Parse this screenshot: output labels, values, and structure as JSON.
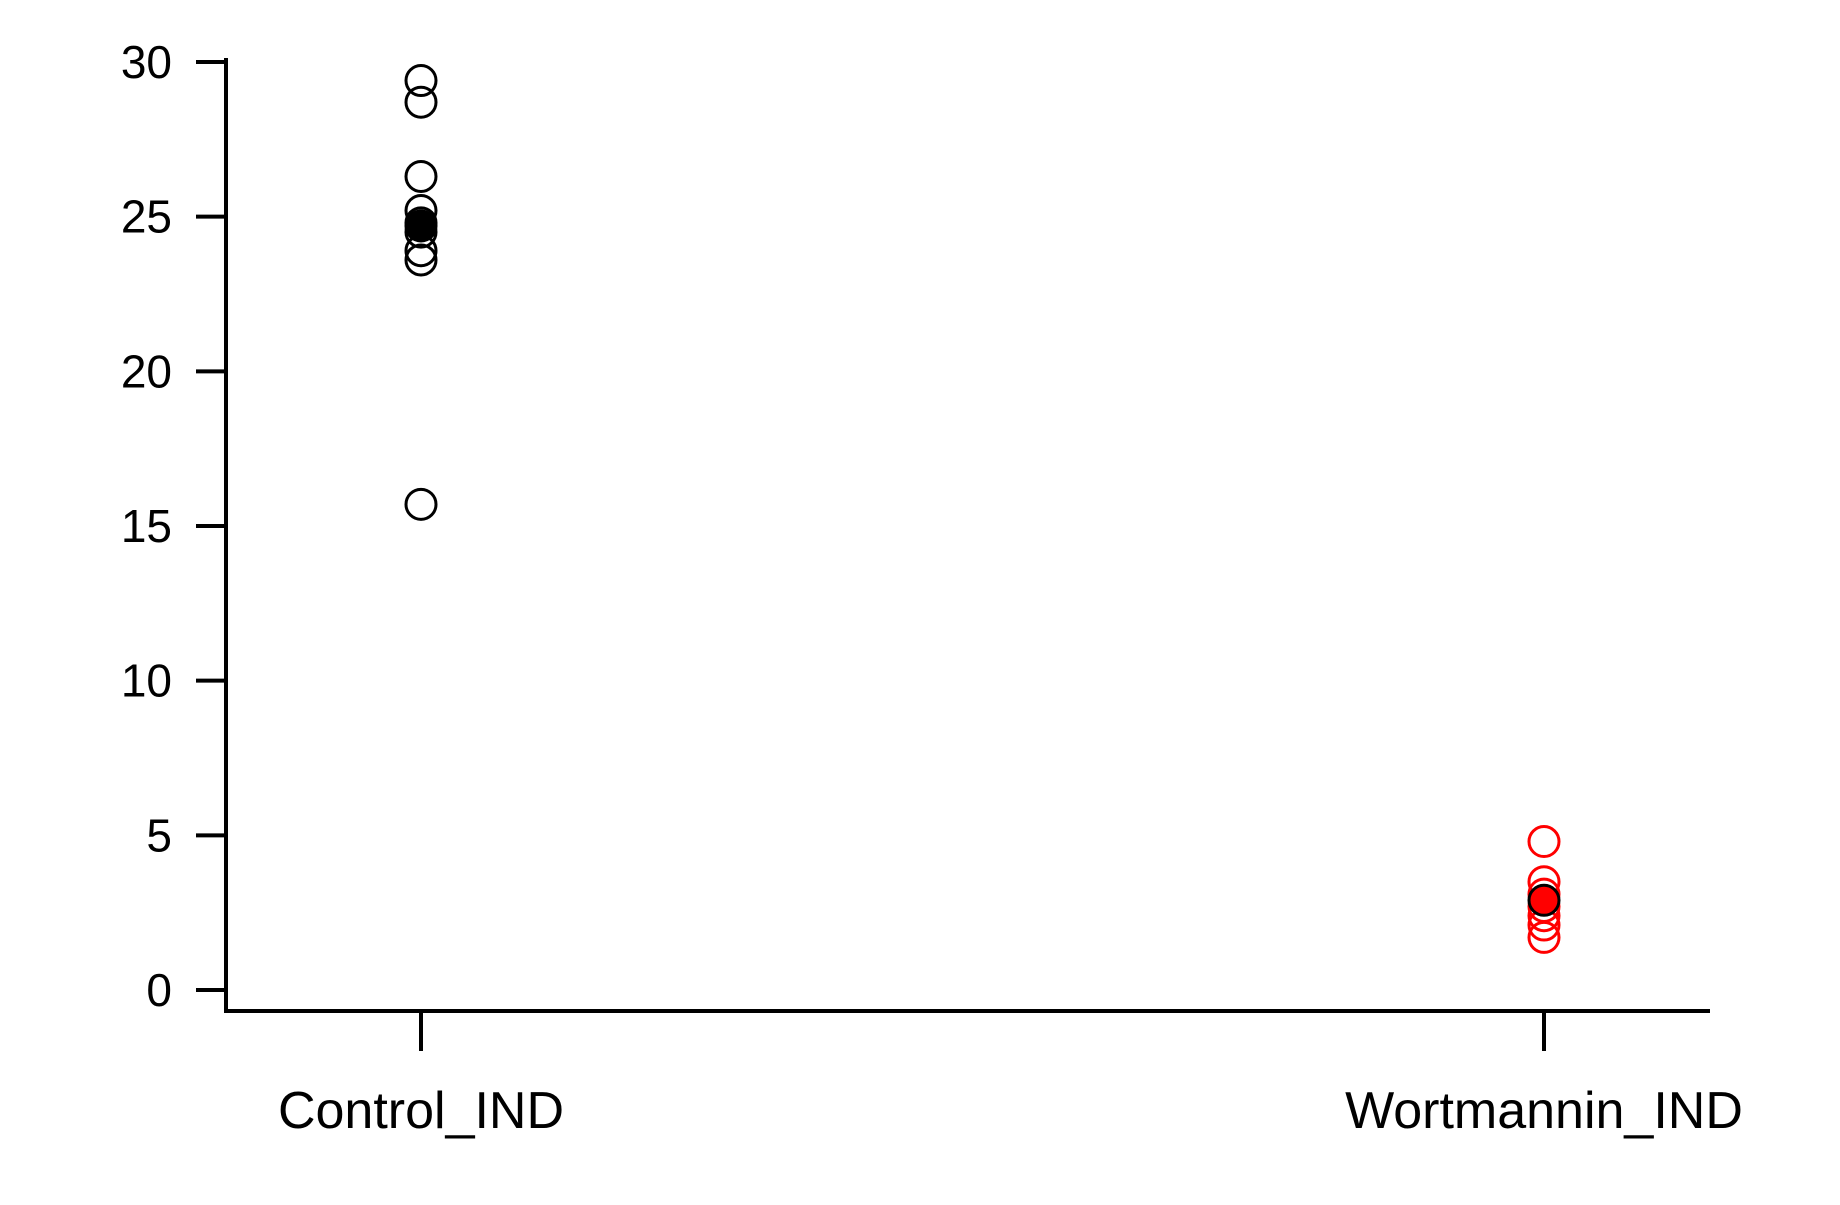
{
  "chart_data": {
    "type": "scatter",
    "title": "",
    "xlabel": "",
    "ylabel": "",
    "ylim": [
      0,
      30
    ],
    "yticks": [
      0,
      5,
      10,
      15,
      20,
      25,
      30
    ],
    "categories": [
      "Control_IND",
      "Wortmannin_IND"
    ],
    "grid": false,
    "legend": "none",
    "series": [
      {
        "category": "Control_IND",
        "color": "#000000",
        "values": [
          29.4,
          28.7,
          26.3,
          25.2,
          24.8,
          24.5,
          23.9,
          23.6,
          15.7
        ],
        "mean": 24.7
      },
      {
        "category": "Wortmannin_IND",
        "color": "#ff0000",
        "values": [
          4.8,
          3.5,
          3.1,
          2.7,
          2.4,
          2.1,
          1.7
        ],
        "mean": 2.9
      }
    ]
  }
}
